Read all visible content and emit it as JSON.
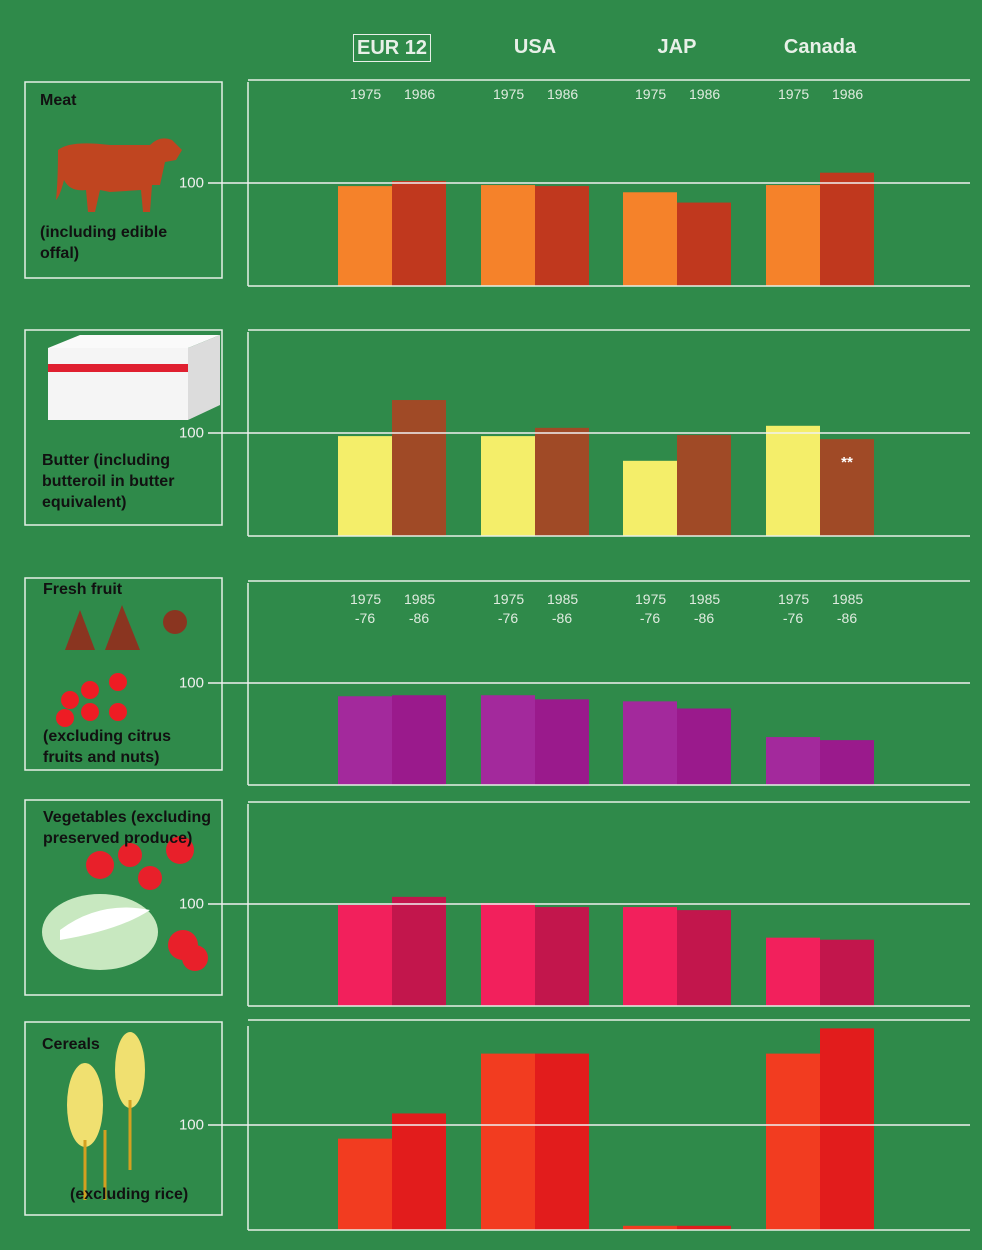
{
  "chart_data": [
    {
      "type": "bar",
      "label": "Meat",
      "note": "(including edible offal)",
      "categories": [
        "EUR 12",
        "USA",
        "JAP",
        "Canada"
      ],
      "series": [
        {
          "name": "1975",
          "color": "#f5822a",
          "values": [
            97,
            98,
            91,
            98
          ]
        },
        {
          "name": "1986",
          "color": "#c0381e",
          "values": [
            102,
            97,
            81,
            110
          ]
        }
      ],
      "ylim": [
        0,
        200
      ],
      "yticks": [
        100
      ]
    },
    {
      "type": "bar",
      "label": "Butter (including butteroil in butter equivalent)",
      "series": [
        {
          "color": "#f4ee6a",
          "values": [
            97,
            97,
            73,
            107
          ]
        },
        {
          "color": "#a04a26",
          "values": [
            132,
            105,
            98,
            94
          ]
        }
      ],
      "annotations": [
        {
          "text": "**",
          "series": 1,
          "index": 3
        }
      ],
      "ylim": [
        0,
        200
      ],
      "yticks": [
        100
      ]
    },
    {
      "type": "bar",
      "label": "Fresh fruit",
      "note": "(excluding citrus fruits and nuts)",
      "series": [
        {
          "name": "1975 -76",
          "color": "#a3299c",
          "values": [
            87,
            88,
            82,
            47
          ]
        },
        {
          "name": "1985 -86",
          "color": "#9a1a8c",
          "values": [
            88,
            84,
            75,
            44
          ]
        }
      ],
      "ylim": [
        0,
        200
      ],
      "yticks": [
        100
      ]
    },
    {
      "type": "bar",
      "label": "Vegetables (excluding preserved produce)",
      "series": [
        {
          "color": "#f2205c",
          "values": [
            99,
            101,
            97,
            67
          ]
        },
        {
          "color": "#c2164c",
          "values": [
            107,
            97,
            94,
            65
          ]
        }
      ],
      "ylim": [
        0,
        200
      ],
      "yticks": [
        100
      ]
    },
    {
      "type": "bar",
      "label": "Cereals",
      "note": "(excluding rice)",
      "series": [
        {
          "color": "#f23c20",
          "values": [
            87,
            168,
            4,
            168
          ]
        },
        {
          "color": "#e21c1c",
          "values": [
            111,
            168,
            4,
            192
          ]
        }
      ],
      "ylim": [
        0,
        200
      ],
      "yticks": [
        100
      ]
    }
  ]
}
